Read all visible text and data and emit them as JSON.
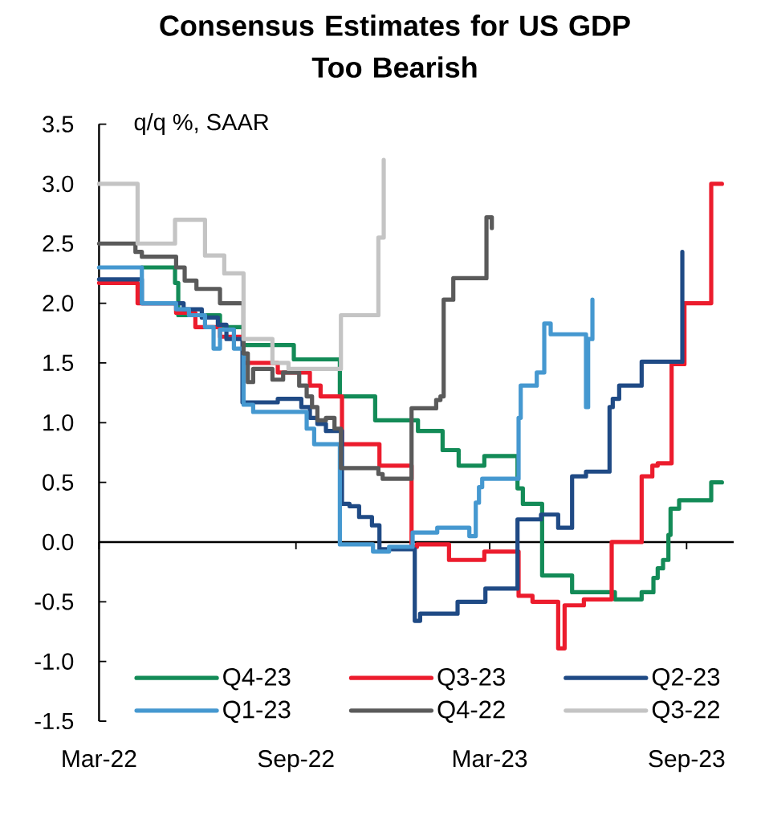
{
  "chart_data": {
    "type": "step",
    "title": "Consensus Estimates for US GDP Too Bearish",
    "ylabel": "q/q %, SAAR",
    "xlim": [
      "2022-03-01",
      "2023-10-15"
    ],
    "xticks": [
      {
        "value": "2022-03-01",
        "label": "Mar-22"
      },
      {
        "value": "2022-09-01",
        "label": "Sep-22"
      },
      {
        "value": "2023-03-01",
        "label": "Mar-23"
      },
      {
        "value": "2023-09-01",
        "label": "Sep-23"
      }
    ],
    "ylim": [
      -1.5,
      3.5
    ],
    "yticks": [
      -1.5,
      {
        "value": -1,
        "label": "-1.0"
      },
      -0.5,
      {
        "value": 0,
        "label": "0.0"
      },
      0.5,
      {
        "value": 1,
        "label": "1.0"
      },
      1.5,
      {
        "value": 2,
        "label": "2.0"
      },
      2.5,
      {
        "value": 3,
        "label": "3.0"
      },
      3.5
    ],
    "legend": "bottom",
    "series": [
      {
        "name": "Q4-23",
        "color": "#138b57",
        "x": [
          "2022-04-10",
          "2022-05-11",
          "2022-05-14",
          "2022-06-22",
          "2022-07-14",
          "2022-08-30",
          "2022-10-12",
          "2022-11-14",
          "2022-12-24",
          "2023-01-16",
          "2023-01-31",
          "2023-02-24",
          "2023-03-27",
          "2023-04-01",
          "2023-04-19",
          "2023-05-17",
          "2023-06-26",
          "2023-07-21",
          "2023-08-01",
          "2023-08-05",
          "2023-08-10",
          "2023-08-15",
          "2023-08-17",
          "2023-08-25",
          "2023-09-24",
          "2023-10-04"
        ],
        "values": [
          2.3,
          2.17,
          1.9,
          1.8,
          1.65,
          1.53,
          1.22,
          1.02,
          0.93,
          0.77,
          0.64,
          0.72,
          0.45,
          0.32,
          -0.28,
          -0.42,
          -0.48,
          -0.42,
          -0.3,
          -0.22,
          -0.15,
          0.06,
          0.28,
          0.35,
          0.5,
          0.5
        ]
      },
      {
        "name": "Q3-23",
        "color": "#ec1c2d",
        "x": [
          "2022-03-01",
          "2022-04-06",
          "2022-05-12",
          "2022-05-30",
          "2022-06-22",
          "2022-07-14",
          "2022-08-15",
          "2022-09-14",
          "2022-09-24",
          "2022-10-14",
          "2022-11-18",
          "2022-12-18",
          "2022-12-23",
          "2023-01-22",
          "2023-02-24",
          "2023-03-28",
          "2023-04-10",
          "2023-05-04",
          "2023-05-10",
          "2023-05-28",
          "2023-06-23",
          "2023-07-21",
          "2023-07-31",
          "2023-08-05",
          "2023-08-18",
          "2023-08-30",
          "2023-09-24",
          "2023-10-04"
        ],
        "values": [
          2.17,
          2.0,
          1.92,
          1.8,
          1.72,
          1.5,
          1.42,
          1.31,
          1.22,
          0.82,
          0.64,
          -0.04,
          -0.02,
          -0.15,
          -0.08,
          -0.45,
          -0.5,
          -0.89,
          -0.53,
          -0.48,
          0.0,
          0.55,
          0.64,
          0.66,
          1.49,
          2.0,
          3.0,
          3.0
        ]
      },
      {
        "name": "Q2-23",
        "color": "#1f4a85",
        "x": [
          "2022-03-01",
          "2022-04-10",
          "2022-05-19",
          "2022-06-05",
          "2022-06-20",
          "2022-06-28",
          "2022-07-13",
          "2022-08-15",
          "2022-09-06",
          "2022-09-14",
          "2022-09-21",
          "2022-09-29",
          "2022-10-14",
          "2022-10-21",
          "2022-10-30",
          "2022-11-11",
          "2022-11-18",
          "2022-12-21",
          "2022-12-26",
          "2023-01-30",
          "2023-02-25",
          "2023-03-27",
          "2023-04-18",
          "2023-05-04",
          "2023-05-17",
          "2023-05-30",
          "2023-06-21",
          "2023-06-24",
          "2023-06-30",
          "2023-07-21",
          "2023-08-28"
        ],
        "values": [
          2.2,
          2.0,
          1.95,
          1.88,
          1.82,
          1.7,
          1.17,
          1.2,
          1.13,
          1.04,
          0.99,
          0.93,
          0.32,
          0.3,
          0.21,
          0.14,
          -0.06,
          -0.66,
          -0.6,
          -0.5,
          -0.39,
          0.19,
          0.23,
          0.12,
          0.55,
          0.59,
          1.13,
          1.2,
          1.31,
          1.51,
          2.43
        ]
      },
      {
        "name": "Q1-23",
        "color": "#4598d0",
        "x": [
          "2022-03-01",
          "2022-04-10",
          "2022-05-12",
          "2022-05-24",
          "2022-06-08",
          "2022-06-16",
          "2022-06-22",
          "2022-07-05",
          "2022-07-14",
          "2022-07-23",
          "2022-09-11",
          "2022-09-18",
          "2022-10-12",
          "2022-11-12",
          "2022-11-27",
          "2022-12-19",
          "2023-01-11",
          "2023-02-10",
          "2023-02-16",
          "2023-02-19",
          "2023-02-22",
          "2023-03-28",
          "2023-03-30",
          "2023-04-14",
          "2023-04-21",
          "2023-04-27",
          "2023-05-30",
          "2023-06-01",
          "2023-06-05"
        ],
        "values": [
          2.3,
          2.0,
          1.95,
          1.9,
          1.8,
          1.62,
          1.78,
          1.62,
          1.15,
          1.09,
          0.95,
          0.82,
          -0.02,
          -0.08,
          -0.04,
          0.08,
          0.12,
          0.05,
          0.33,
          0.46,
          0.53,
          1.04,
          1.31,
          1.42,
          1.83,
          1.74,
          1.13,
          1.7,
          2.03
        ]
      },
      {
        "name": "Q4-22",
        "color": "#5a5a5a",
        "x": [
          "2022-03-01",
          "2022-04-04",
          "2022-04-10",
          "2022-05-12",
          "2022-05-20",
          "2022-05-31",
          "2022-06-22",
          "2022-07-14",
          "2022-07-18",
          "2022-07-23",
          "2022-08-10",
          "2022-08-20",
          "2022-09-04",
          "2022-09-11",
          "2022-09-16",
          "2022-09-21",
          "2022-09-29",
          "2022-10-07",
          "2022-10-13",
          "2022-11-17",
          "2022-11-21",
          "2022-12-18",
          "2023-01-10",
          "2023-01-14",
          "2023-01-17",
          "2023-01-26",
          "2023-02-26",
          "2023-03-03"
        ],
        "values": [
          2.5,
          2.43,
          2.39,
          2.3,
          2.19,
          2.12,
          2.0,
          1.58,
          1.34,
          1.45,
          1.36,
          1.42,
          1.31,
          1.22,
          1.13,
          1.02,
          1.04,
          0.95,
          0.62,
          0.57,
          0.53,
          1.12,
          1.19,
          1.22,
          2.03,
          2.21,
          2.72,
          2.63
        ]
      },
      {
        "name": "Q3-22",
        "color": "#c4c4c4",
        "x": [
          "2022-03-01",
          "2022-04-06",
          "2022-05-11",
          "2022-06-08",
          "2022-06-26",
          "2022-07-14",
          "2022-08-10",
          "2022-08-25",
          "2022-10-13",
          "2022-11-17",
          "2022-11-22"
        ],
        "values": [
          3.0,
          2.5,
          2.7,
          2.4,
          2.25,
          1.7,
          1.5,
          1.45,
          1.9,
          2.55,
          3.2
        ]
      }
    ]
  }
}
